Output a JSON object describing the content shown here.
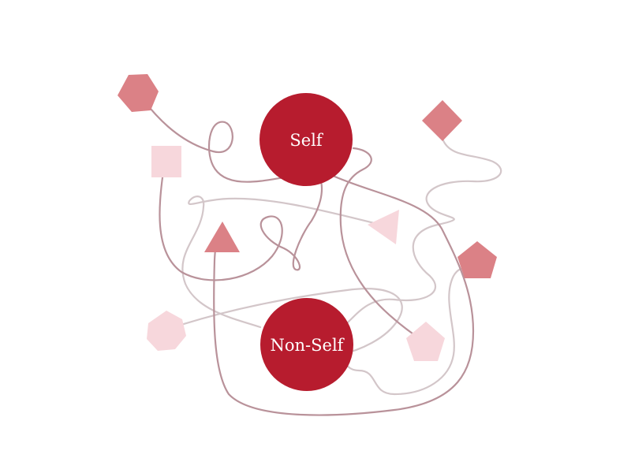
{
  "diagram": {
    "nodes": [
      {
        "id": "self",
        "label": "Self"
      },
      {
        "id": "non_self",
        "label": "Non-Self"
      }
    ],
    "colors": {
      "node_fill": "#b71c2e",
      "shape_dark": "#db8186",
      "shape_light": "#f7d7dc",
      "thread_dark": "#b9929a",
      "thread_light": "#d3c6c9"
    },
    "shapes": [
      {
        "name": "hexagon-top-left",
        "kind": "hexagon",
        "tone": "dark"
      },
      {
        "name": "square-left",
        "kind": "square",
        "tone": "light"
      },
      {
        "name": "triangle-center-left",
        "kind": "triangle",
        "tone": "dark"
      },
      {
        "name": "triangle-center-right",
        "kind": "triangle",
        "tone": "light"
      },
      {
        "name": "diamond-top-right",
        "kind": "diamond",
        "tone": "dark"
      },
      {
        "name": "pentagon-right",
        "kind": "pentagon",
        "tone": "dark"
      },
      {
        "name": "pentagon-lower-right",
        "kind": "pentagon",
        "tone": "light"
      },
      {
        "name": "heptagon-lower-left",
        "kind": "heptagon",
        "tone": "light"
      }
    ]
  }
}
